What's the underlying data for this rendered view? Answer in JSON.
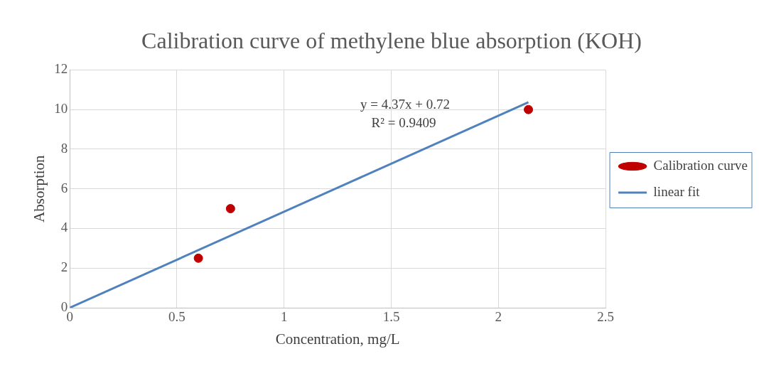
{
  "chart_data": {
    "type": "scatter",
    "title": "Calibration curve of methylene blue absorption (KOH)",
    "xlabel": "Concentration, mg/L",
    "ylabel": "Absorption",
    "series": [
      {
        "name": "Calibration curve",
        "color": "#c00000",
        "marker": "circle",
        "x": [
          0.6,
          0.75,
          2.14
        ],
        "values": [
          2.5,
          5,
          10
        ]
      },
      {
        "name": "linear fit",
        "type": "line",
        "color": "#4f81bd",
        "marker": "none",
        "x": [
          0,
          2.14
        ],
        "values": [
          0,
          10.37
        ]
      }
    ],
    "annotations": [
      "y = 4.37x + 0.72",
      "R² = 0.9409"
    ],
    "xlim": [
      0,
      2.5
    ],
    "xticks": [
      0,
      0.5,
      1,
      1.5,
      2,
      2.5
    ],
    "ylim": [
      0,
      12
    ],
    "yticks": [
      0,
      2,
      4,
      6,
      8,
      10,
      12
    ],
    "grid": true,
    "legend": "right"
  }
}
